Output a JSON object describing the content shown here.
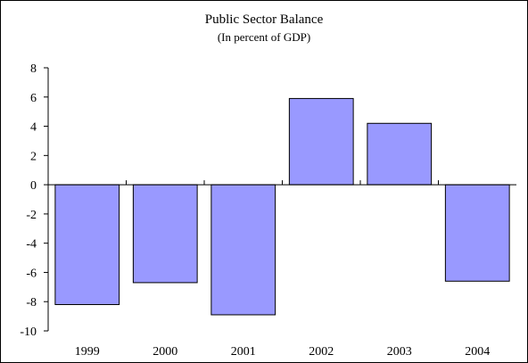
{
  "chart_data": {
    "type": "bar",
    "title": "Public Sector Balance",
    "subtitle": "(In percent of GDP)",
    "categories": [
      "1999",
      "2000",
      "2001",
      "2002",
      "2003",
      "2004"
    ],
    "values": [
      -8.2,
      -6.7,
      -8.9,
      5.9,
      4.2,
      -6.6
    ],
    "ylim": [
      -10,
      8
    ],
    "yticks": [
      8,
      6,
      4,
      2,
      0,
      -2,
      -4,
      -6,
      -8,
      -10
    ],
    "xlabel": "",
    "ylabel": "",
    "grid": false,
    "legend": "none",
    "bar_color": "#9999ff",
    "edge_color": "#000000"
  }
}
